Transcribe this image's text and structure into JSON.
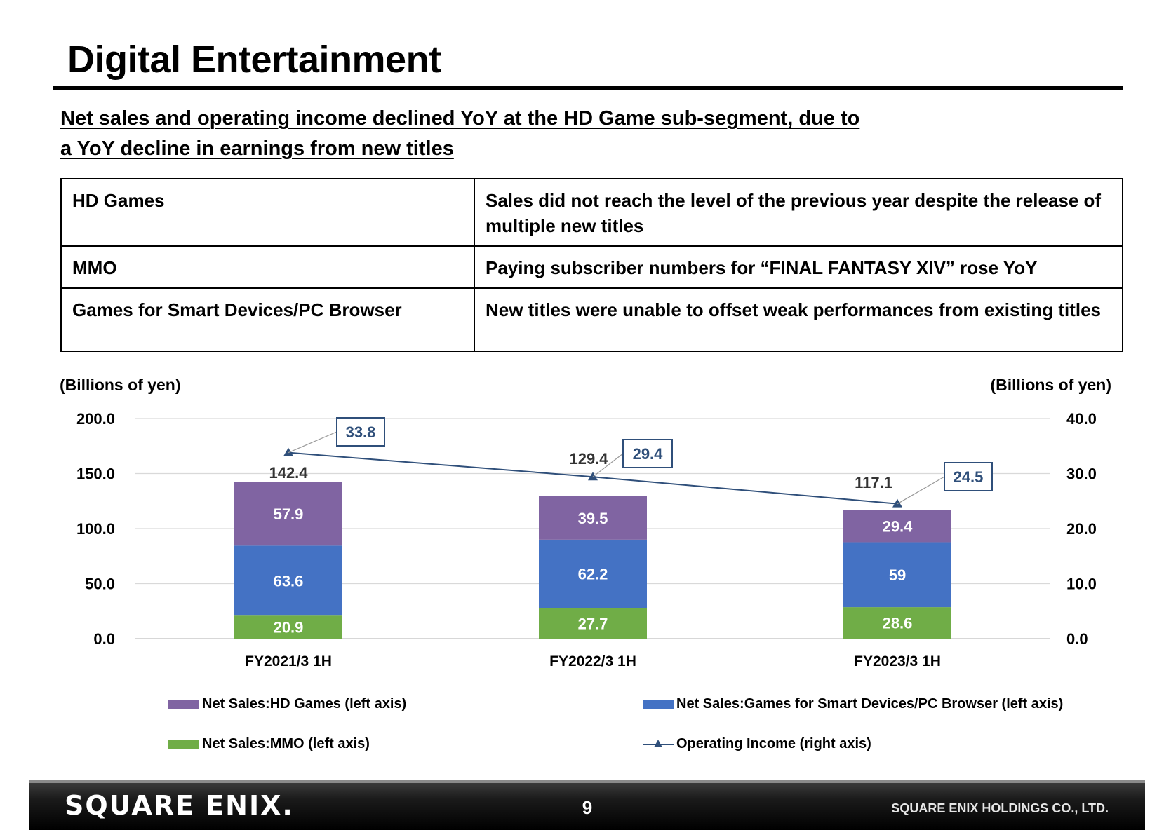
{
  "header": {
    "title": "Digital Entertainment"
  },
  "subtitle": {
    "line1": "Net sales and operating income declined YoY at the HD Game sub-segment, due to",
    "line2": "a YoY decline in earnings from new titles"
  },
  "summary_table": [
    {
      "segment": "HD Games",
      "comment": "Sales did not reach the level of the previous year despite the release of multiple new titles"
    },
    {
      "segment": "MMO",
      "comment": "Paying subscriber numbers for “FINAL FANTASY XIV” rose YoY"
    },
    {
      "segment": "Games for Smart Devices/PC Browser",
      "comment": "New titles were unable to offset weak performances from existing titles"
    }
  ],
  "chart_data": {
    "type": "bar",
    "stacked": true,
    "categories": [
      "FY2021/3 1H",
      "FY2022/3 1H",
      "FY2023/3 1H"
    ],
    "left_axis": {
      "unit": "(Billions of yen)",
      "ylim": [
        0,
        200
      ],
      "ticks": [
        "0.0",
        "50.0",
        "100.0",
        "150.0",
        "200.0"
      ]
    },
    "right_axis": {
      "unit": "(Billions of yen)",
      "ylim": [
        0,
        40
      ],
      "ticks": [
        "0.0",
        "10.0",
        "20.0",
        "30.0",
        "40.0"
      ]
    },
    "series": [
      {
        "name": "Net Sales:MMO (left axis)",
        "axis": "left",
        "color": "#70ad47",
        "values": [
          20.9,
          27.7,
          28.6
        ],
        "labels": [
          "20.9",
          "27.7",
          "28.6"
        ]
      },
      {
        "name": "Net Sales:Games for Smart Devices/PC Browser (left axis)",
        "axis": "left",
        "color": "#4472c4",
        "values": [
          63.6,
          62.2,
          59
        ],
        "labels": [
          "63.6",
          "62.2",
          "59"
        ]
      },
      {
        "name": "Net Sales:HD Games (left axis)",
        "axis": "left",
        "color": "#8064a2",
        "values": [
          57.9,
          39.5,
          29.4
        ],
        "labels": [
          "57.9",
          "39.5",
          "29.4"
        ]
      }
    ],
    "totals": [
      142.4,
      129.4,
      117.1
    ],
    "total_labels": [
      "142.4",
      "129.4",
      "117.1"
    ],
    "line_series": {
      "name": "Operating Income (right axis)",
      "axis": "right",
      "color": "#2f4f7a",
      "values": [
        33.8,
        29.4,
        24.5
      ],
      "labels": [
        "33.8",
        "29.4",
        "24.5"
      ]
    },
    "grid": true,
    "legend_position": "bottom"
  },
  "legend": {
    "hd": "Net Sales:HD Games (left axis)",
    "smart": "Net Sales:Games for Smart Devices/PC Browser (left axis)",
    "mmo": "Net Sales:MMO (left axis)",
    "oi": "Operating Income (right axis)"
  },
  "footer": {
    "logo": "SQUARE ENIX.",
    "page_number": "9",
    "company": "SQUARE ENIX HOLDINGS CO., LTD."
  }
}
